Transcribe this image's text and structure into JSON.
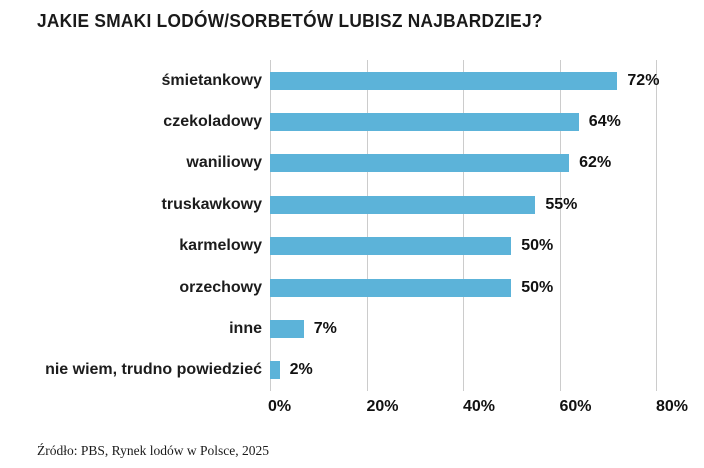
{
  "chart_data": {
    "type": "bar",
    "orientation": "horizontal",
    "title": "JAKIE SMAKI LODÓW/SORBETÓW LUBISZ NAJBARDZIEJ?",
    "categories": [
      "śmietankowy",
      "czekoladowy",
      "waniliowy",
      "truskawkowy",
      "karmelowy",
      "orzechowy",
      "inne",
      "nie wiem, trudno powiedzieć"
    ],
    "values": [
      72,
      64,
      62,
      55,
      50,
      50,
      7,
      2
    ],
    "value_labels": [
      "72%",
      "64%",
      "62%",
      "55%",
      "50%",
      "50%",
      "7%",
      "2%"
    ],
    "x_ticks": [
      0,
      20,
      40,
      60,
      80
    ],
    "x_tick_labels": [
      "0%",
      "20%",
      "40%",
      "60%",
      "80%"
    ],
    "xlim": [
      0,
      80
    ],
    "xlabel": "",
    "ylabel": "",
    "grid": "vertical",
    "legend": "none",
    "bar_color": "#5CB3D9",
    "gridline_color": "#CCCCCC",
    "source": "Źródło: PBS, Rynek lodów w Polsce, 2025"
  }
}
